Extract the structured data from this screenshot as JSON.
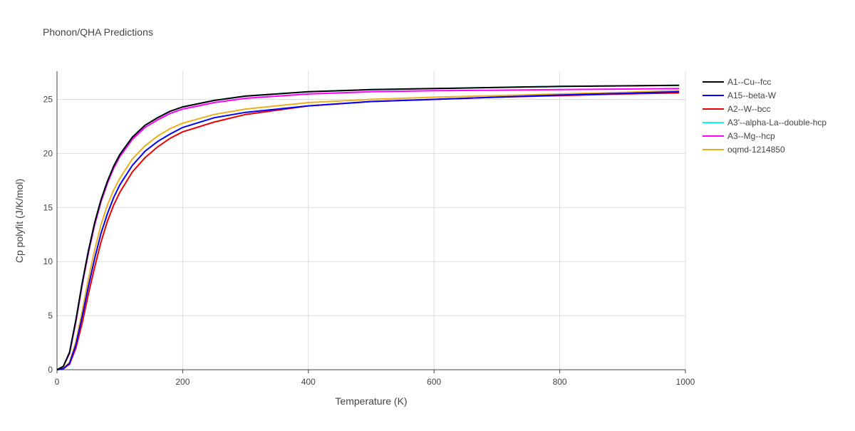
{
  "chart_data": {
    "type": "line",
    "title": "Phonon/QHA Predictions",
    "x_label": "Temperature (K)",
    "y_label": "Cp polyfit (J/K/mol)",
    "x": [
      0,
      10,
      20,
      30,
      40,
      50,
      60,
      70,
      80,
      90,
      100,
      120,
      140,
      160,
      180,
      200,
      250,
      300,
      400,
      500,
      600,
      700,
      800,
      900,
      990
    ],
    "series": [
      {
        "name": "A1--Cu--fcc",
        "color": "#000000",
        "values": [
          0,
          0.3,
          1.6,
          4.6,
          8.0,
          11.0,
          13.6,
          15.7,
          17.4,
          18.8,
          19.9,
          21.5,
          22.6,
          23.3,
          23.9,
          24.3,
          24.9,
          25.3,
          25.7,
          25.9,
          26.0,
          26.1,
          26.2,
          26.25,
          26.3
        ]
      },
      {
        "name": "A15--beta-W",
        "color": "#0000ff",
        "values": [
          0,
          0.1,
          0.6,
          2.3,
          4.9,
          7.7,
          10.3,
          12.6,
          14.4,
          15.9,
          17.1,
          18.9,
          20.2,
          21.1,
          21.8,
          22.4,
          23.3,
          23.8,
          24.4,
          24.8,
          25.0,
          25.2,
          25.4,
          25.55,
          25.7
        ]
      },
      {
        "name": "A2--W--bcc",
        "color": "#ee0000",
        "values": [
          0,
          0.1,
          0.5,
          2.0,
          4.3,
          7.0,
          9.5,
          11.8,
          13.7,
          15.2,
          16.4,
          18.3,
          19.6,
          20.6,
          21.4,
          22.0,
          22.9,
          23.6,
          24.4,
          24.8,
          25.0,
          25.2,
          25.35,
          25.5,
          25.6
        ]
      },
      {
        "name": "A3'--alpha-La--double-hcp",
        "color": "#00ffff",
        "values": [
          0,
          0.3,
          1.6,
          4.6,
          8.0,
          11.0,
          13.6,
          15.7,
          17.4,
          18.8,
          19.9,
          21.5,
          22.6,
          23.3,
          23.9,
          24.3,
          24.9,
          25.3,
          25.7,
          25.9,
          26.0,
          26.1,
          26.2,
          26.25,
          26.3
        ]
      },
      {
        "name": "A3--Mg--hcp",
        "color": "#ff00ff",
        "values": [
          0,
          0.3,
          1.5,
          4.4,
          7.8,
          10.8,
          13.4,
          15.5,
          17.2,
          18.6,
          19.7,
          21.3,
          22.4,
          23.1,
          23.7,
          24.1,
          24.7,
          25.1,
          25.5,
          25.7,
          25.8,
          25.85,
          25.9,
          25.95,
          26.0
        ]
      },
      {
        "name": "oqmd-1214850",
        "color": "#ecb01f",
        "values": [
          0,
          0.1,
          0.7,
          2.6,
          5.4,
          8.4,
          11.1,
          13.4,
          15.2,
          16.6,
          17.7,
          19.5,
          20.7,
          21.6,
          22.3,
          22.8,
          23.6,
          24.1,
          24.7,
          25.0,
          25.2,
          25.35,
          25.5,
          25.65,
          25.8
        ]
      }
    ],
    "xlim": [
      0,
      1000
    ],
    "xticks": [
      0,
      200,
      400,
      600,
      800,
      1000
    ],
    "ylim": [
      0,
      27.6
    ],
    "yticks": [
      0,
      5,
      10,
      15,
      20,
      25
    ],
    "grid": true
  }
}
